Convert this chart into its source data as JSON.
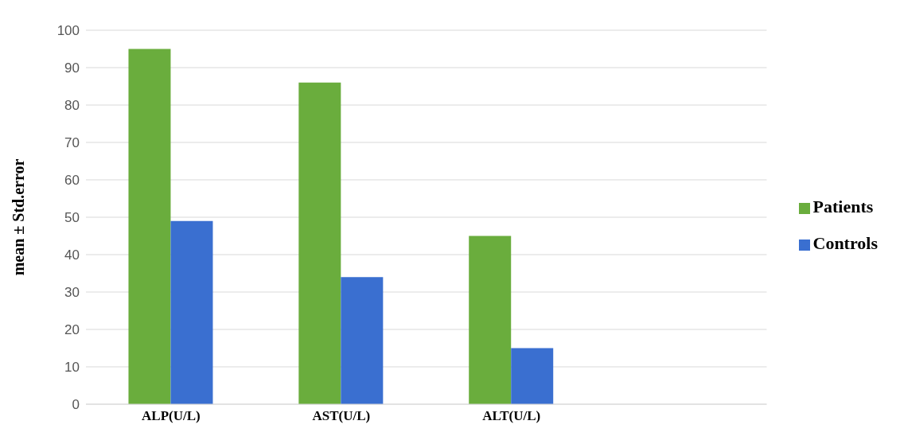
{
  "chart_data": {
    "type": "bar",
    "ylabel": "mean ± Std.error",
    "categories": [
      "ALP(U/L)",
      "AST(U/L)",
      "ALT(U/L)",
      null
    ],
    "series": [
      {
        "name": "Patients",
        "color": "#6aad3d",
        "values": [
          95,
          86,
          45,
          null
        ]
      },
      {
        "name": "Controls",
        "color": "#3a6fd0",
        "values": [
          49,
          34,
          15,
          null
        ]
      }
    ],
    "ylim": [
      0,
      100
    ],
    "yticks": [
      0,
      10,
      20,
      30,
      40,
      50,
      60,
      70,
      80,
      90,
      100
    ],
    "grid": "y",
    "legend": "right"
  }
}
